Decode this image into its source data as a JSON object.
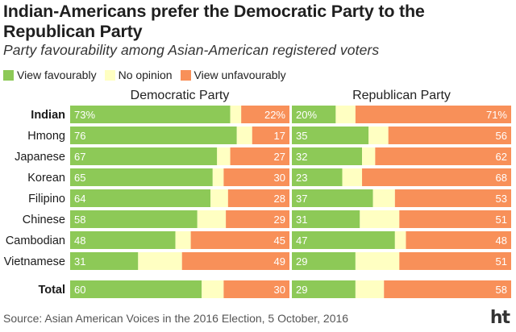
{
  "title": "Indian-Americans prefer the Democratic Party to the Republican Party",
  "subtitle": "Party favourability among Asian-American registered voters",
  "legend": [
    {
      "label": "View favourably",
      "color": "#8dc957"
    },
    {
      "label": "No opinion",
      "color": "#ffffc2"
    },
    {
      "label": "View unfavourably",
      "color": "#f89059"
    }
  ],
  "source": "Source: Asian American Voices in the 2016 Election, 5 October, 2016",
  "logo": "ht",
  "chart_data": {
    "type": "bar",
    "orientation": "horizontal-stacked",
    "categories": [
      "Indian",
      "Hmong",
      "Japanese",
      "Korean",
      "Filipino",
      "Chinese",
      "Cambodian",
      "Vietnamese",
      "Total"
    ],
    "bold_categories": [
      "Indian",
      "Total"
    ],
    "panels": [
      {
        "title": "Democratic Party",
        "series": [
          {
            "name": "View favourably",
            "values": [
              73,
              76,
              67,
              65,
              64,
              58,
              48,
              31,
              60
            ]
          },
          {
            "name": "View unfavourably",
            "values": [
              22,
              17,
              27,
              30,
              28,
              29,
              45,
              49,
              30
            ]
          }
        ],
        "fav_labels": [
          "73%",
          "76",
          "67",
          "65",
          "64",
          "58",
          "48",
          "31",
          "60"
        ],
        "unfav_labels": [
          "22%",
          "17",
          "27",
          "30",
          "28",
          "29",
          "45",
          "49",
          "30"
        ]
      },
      {
        "title": "Republican Party",
        "series": [
          {
            "name": "View favourably",
            "values": [
              20,
              35,
              32,
              23,
              37,
              31,
              47,
              29,
              29
            ]
          },
          {
            "name": "View unfavourably",
            "values": [
              71,
              56,
              62,
              68,
              53,
              51,
              48,
              51,
              58
            ]
          }
        ],
        "fav_labels": [
          "20%",
          "35",
          "32",
          "23",
          "37",
          "31",
          "47",
          "29",
          "29"
        ],
        "unfav_labels": [
          "71%",
          "56",
          "62",
          "68",
          "53",
          "51",
          "48",
          "51",
          "58"
        ]
      }
    ],
    "colors": {
      "favourable": "#8dc957",
      "no_opinion": "#ffffc2",
      "unfavourable": "#f89059"
    },
    "xlim": [
      0,
      100
    ]
  }
}
